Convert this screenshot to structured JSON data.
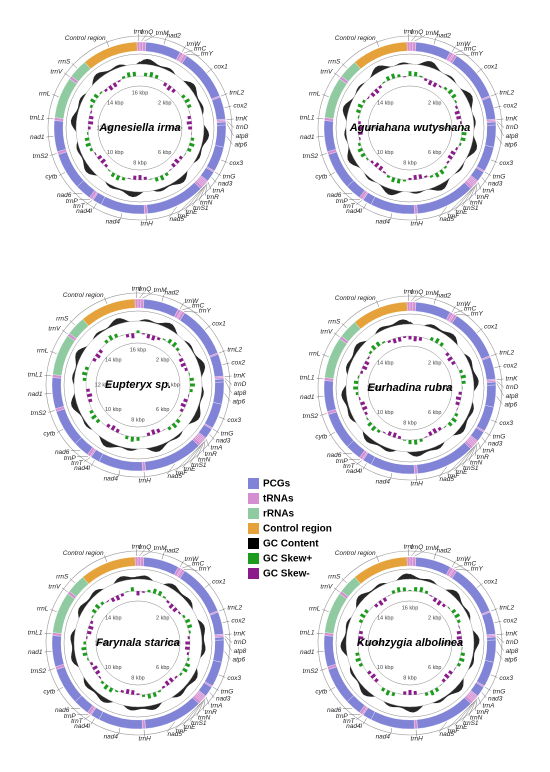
{
  "maps": [
    {
      "species": "Agnesiella irma",
      "kbp_ticks": [
        "2 kbp",
        "4 kbp",
        "6 kbp",
        "8 kbp",
        "10 kbp",
        "12 kbp",
        "14 kbp",
        "16 kbp"
      ],
      "genes": [
        "Control region",
        "trnI",
        "trnQ",
        "trnM",
        "nad2",
        "trnW",
        "trnC",
        "trnY",
        "cox1",
        "trnL2",
        "cox2",
        "trnK",
        "trnD",
        "atp8",
        "atp6",
        "cox3",
        "trnG",
        "nad3",
        "trnA",
        "trnR",
        "trnN",
        "trnS1",
        "trnE",
        "trnF",
        "nad5",
        "trnH",
        "nad4",
        "nad4l",
        "trnT",
        "trnP",
        "nad6",
        "cytb",
        "trnS2",
        "nad1",
        "trnL1",
        "rrnL",
        "trnV",
        "rrnS"
      ]
    },
    {
      "species": "Aguriahana wutyshana",
      "kbp_ticks": [
        "2 kbp",
        "4 kbp",
        "6 kbp",
        "8 kbp",
        "10 kbp",
        "12 kbp",
        "14 kbp"
      ],
      "genes": [
        "Control region",
        "trnI",
        "trnQ",
        "trnM",
        "nad2",
        "trnW",
        "trnC",
        "trnY",
        "cox1",
        "trnL2",
        "cox2",
        "trnK",
        "trnD",
        "atp8",
        "atp6",
        "cox3",
        "trnG",
        "nad3",
        "trnA",
        "trnR",
        "trnN",
        "trnS1",
        "trnE",
        "trnF",
        "nad5",
        "trnH",
        "nad4",
        "nad4l",
        "trnT",
        "trnP",
        "nad6",
        "cytb",
        "trnS2",
        "nad1",
        "trnL1",
        "rrnL",
        "trnV",
        "rrnS"
      ]
    },
    {
      "species": "Eupteryx sp.",
      "kbp_ticks": [
        "2 kbp",
        "4 kbp",
        "6 kbp",
        "8 kbp",
        "10 kbp",
        "12 kbp",
        "14 kbp",
        "16 kbp"
      ],
      "genes": [
        "Control region",
        "trnI",
        "trnQ",
        "trnM",
        "nad2",
        "trnW",
        "trnC",
        "trnY",
        "cox1",
        "trnL2",
        "cox2",
        "trnK",
        "trnD",
        "atp8",
        "atp6",
        "cox3",
        "trnG",
        "nad3",
        "trnA",
        "trnR",
        "trnN",
        "trnS1",
        "trnE",
        "trnF",
        "nad5",
        "trnH",
        "nad4",
        "nad4l",
        "trnT",
        "trnP",
        "nad6",
        "cytb",
        "trnS2",
        "nad1",
        "trnL1",
        "rrnL",
        "trnV",
        "rrnS"
      ]
    },
    {
      "species": "Eurhadina rubra",
      "kbp_ticks": [
        "2 kbp",
        "4 kbp",
        "6 kbp",
        "8 kbp",
        "10 kbp",
        "12 kbp",
        "14 kbp"
      ],
      "genes": [
        "Control region",
        "trnI",
        "trnQ",
        "trnM",
        "nad2",
        "trnW",
        "trnC",
        "trnY",
        "cox1",
        "trnL2",
        "cox2",
        "trnK",
        "trnD",
        "atp8",
        "atp6",
        "cox3",
        "trnG",
        "nad3",
        "trnA",
        "trnR",
        "trnN",
        "trnS1",
        "trnE",
        "trnF",
        "nad5",
        "trnH",
        "nad4",
        "nad4l",
        "trnT",
        "trnP",
        "nad6",
        "cytb",
        "trnS2",
        "nad1",
        "trnL1",
        "rrnL",
        "trnV",
        "rrnS"
      ]
    },
    {
      "species": "Farynala starica",
      "kbp_ticks": [
        "2 kbp",
        "4 kbp",
        "6 kbp",
        "8 kbp",
        "10 kbp",
        "12 kbp",
        "14 kbp"
      ],
      "genes": [
        "Control region",
        "trnI",
        "trnQ",
        "trnM",
        "nad2",
        "trnW",
        "trnC",
        "trnY",
        "cox1",
        "trnL2",
        "cox2",
        "trnK",
        "trnD",
        "atp8",
        "atp6",
        "cox3",
        "trnG",
        "nad3",
        "trnA",
        "trnR",
        "trnN",
        "trnS1",
        "trnE",
        "trnF",
        "nad5",
        "trnH",
        "nad4",
        "nad4l",
        "trnT",
        "trnP",
        "nad6",
        "cytb",
        "trnS2",
        "nad1",
        "trnL1",
        "rrnL",
        "trnV",
        "rrnS"
      ]
    },
    {
      "species": "Kuohzygia albolinea",
      "kbp_ticks": [
        "2 kbp",
        "4 kbp",
        "6 kbp",
        "8 kbp",
        "10 kbp",
        "12 kbp",
        "14 kbp",
        "16 kbp"
      ],
      "genes": [
        "Control region",
        "trnI",
        "trnQ",
        "trnM",
        "nad2",
        "trnW",
        "trnC",
        "trnY",
        "cox1",
        "trnL2",
        "cox2",
        "trnK",
        "trnD",
        "atp8",
        "atp6",
        "cox3",
        "trnG",
        "nad3",
        "trnA",
        "trnR",
        "trnN",
        "trnS1",
        "trnE",
        "trnF",
        "nad5",
        "trnH",
        "nad4",
        "nad4l",
        "trnT",
        "trnP",
        "nad6",
        "cytb",
        "trnS2",
        "nad1",
        "trnL1",
        "rrnL",
        "trnV",
        "rrnS"
      ]
    }
  ],
  "legend": {
    "items": [
      {
        "label": "PCGs",
        "color": "#8184d6"
      },
      {
        "label": "tRNAs",
        "color": "#d48fd2"
      },
      {
        "label": "rRNAs",
        "color": "#8fcaa0"
      },
      {
        "label": "Control region",
        "color": "#e5a23a"
      },
      {
        "label": "GC Content",
        "color": "#000000"
      },
      {
        "label": "GC Skew+",
        "color": "#1c9c1c"
      },
      {
        "label": "GC Skew-",
        "color": "#8b1a8b"
      }
    ]
  }
}
